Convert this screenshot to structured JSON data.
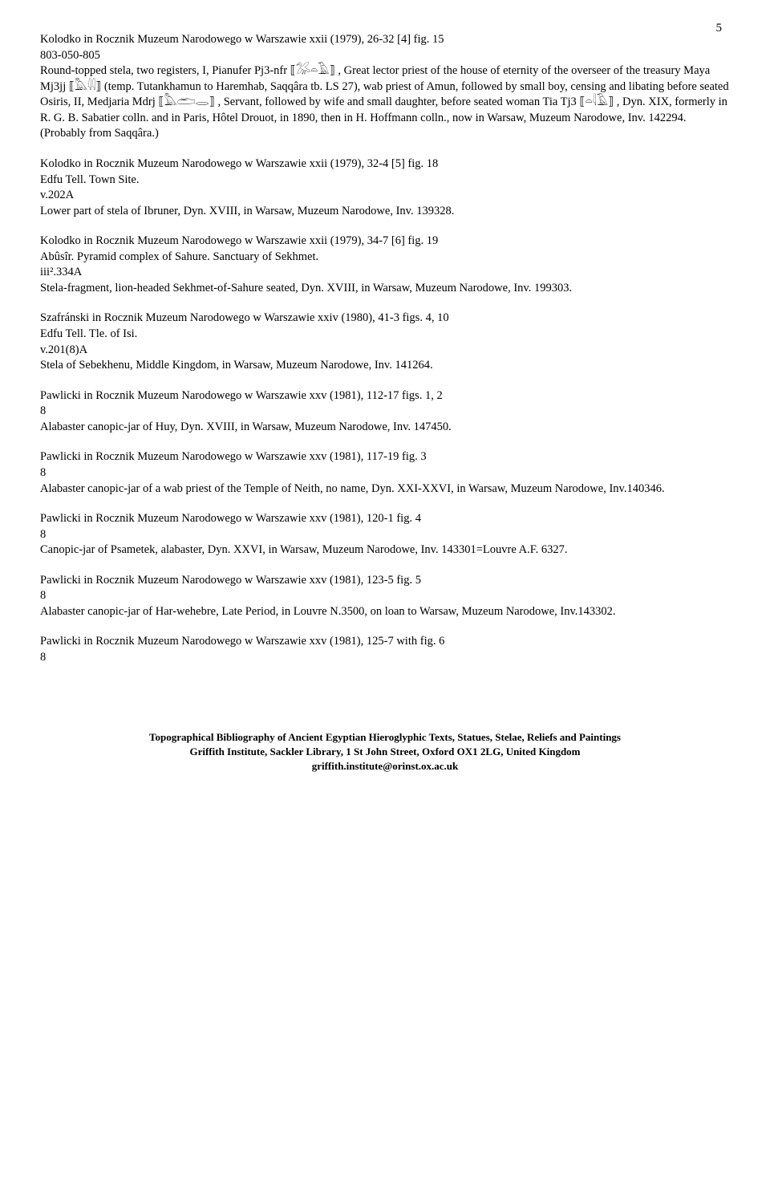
{
  "page_number": "5",
  "paragraphs": [
    {
      "lines": [
        "Kolodko in Rocznik Muzeum Narodowego w Warszawie xxii (1979), 26-32 [4] fig. 15",
        "803-050-805",
        "Round-topped stela, two registers, I, Pianufer Pj3-nfr ⟦𓅮𓏏𓄿⟧ , Great lector priest of the house of eternity of the overseer of the treasury Maya Mj3jj ⟦𓅓𓇋𓇋⟧ (temp. Tutankhamun to Haremhab, Saqqâra tb. LS 27), wab priest of Amun, followed by small boy, censing and libating before seated Osiris, II, Medjaria Mdrj ⟦𓅓𓂧𓂋⟧ , Servant, followed by wife and small daughter, before seated woman Tia Tj3 ⟦𓏏𓇋𓄿⟧ , Dyn. XIX, formerly in R. G. B. Sabatier colln. and in Paris, Hôtel Drouot, in 1890, then in H. Hoffmann colln., now in Warsaw, Muzeum Narodowe, Inv. 142294. (Probably from Saqqâra.)"
      ]
    },
    {
      "lines": [
        "Kolodko in Rocznik Muzeum Narodowego w Warszawie xxii (1979), 32-4 [5] fig. 18",
        "Edfu Tell. Town Site.",
        "v.202A",
        "Lower part of stela of Ibruner, Dyn. XVIII,  in Warsaw, Muzeum Narodowe, Inv. 139328."
      ]
    },
    {
      "lines": [
        "Kolodko in Rocznik Muzeum Narodowego w Warszawie xxii (1979), 34-7 [6] fig. 19",
        "Abûsîr. Pyramid complex of Sahure. Sanctuary of Sekhmet.",
        "iii².334A",
        "Stela-fragment, lion-headed Sekhmet-of-Sahure seated, Dyn. XVIII, in  Warsaw, Muzeum Narodowe, Inv. 199303."
      ]
    },
    {
      "lines": [
        "Szafránski in Rocznik Muzeum Narodowego w Warszawie xxiv (1980), 41-3 figs. 4, 10",
        "Edfu Tell. Tle. of Isi.",
        "v.201(8)A",
        "Stela of Sebekhenu, Middle Kingdom, in Warsaw, Muzeum Narodowe, Inv. 141264."
      ]
    },
    {
      "lines": [
        "Pawlicki in Rocznik Muzeum Narodowego w Warszawie xxv (1981), 112-17 figs. 1, 2",
        "8",
        "Alabaster canopic-jar of Huy, Dyn. XVIII, in Warsaw, Muzeum Narodowe, Inv. 147450."
      ]
    },
    {
      "lines": [
        "Pawlicki in Rocznik Muzeum Narodowego w Warszawie xxv (1981), 117-19 fig. 3",
        "8",
        "Alabaster canopic-jar of a wab priest of the Temple of Neith, no name, Dyn. XXI-XXVI, in Warsaw, Muzeum Narodowe, Inv.140346."
      ]
    },
    {
      "lines": [
        "Pawlicki in Rocznik Muzeum Narodowego w Warszawie xxv (1981), 120-1 fig. 4",
        "8",
        "Canopic-jar of Psametek, alabaster, Dyn. XXVI,  in Warsaw, Muzeum Narodowe, Inv. 143301=Louvre A.F. 6327."
      ]
    },
    {
      "lines": [
        "Pawlicki in Rocznik Muzeum Narodowego w Warszawie xxv (1981), 123-5 fig. 5",
        "8",
        "Alabaster canopic-jar of Har-wehebre, Late Period, in Louvre N.3500, on loan to Warsaw, Muzeum Narodowe, Inv.143302."
      ]
    },
    {
      "lines": [
        "Pawlicki in Rocznik Muzeum Narodowego w Warszawie xxv (1981), 125-7 with fig. 6",
        "8"
      ]
    }
  ],
  "footer": {
    "line1": "Topographical Bibliography of Ancient Egyptian Hieroglyphic Texts, Statues, Stelae, Reliefs and Paintings",
    "line2": "Griffith Institute, Sackler Library, 1 St John Street, Oxford OX1 2LG, United Kingdom",
    "line3": "griffith.institute@orinst.ox.ac.uk"
  }
}
